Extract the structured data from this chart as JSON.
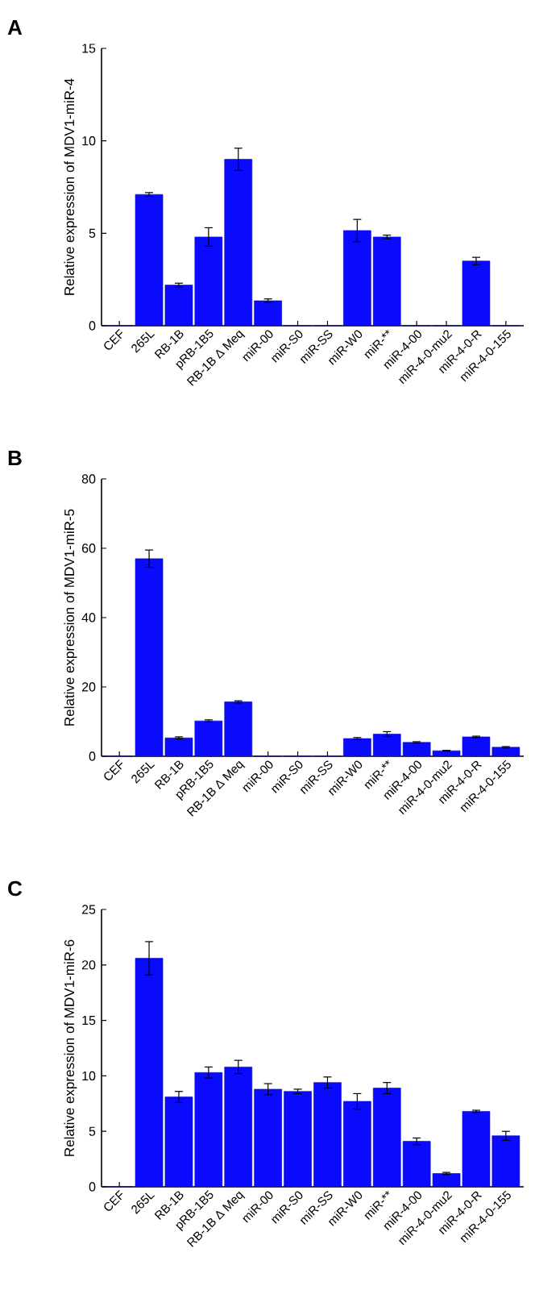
{
  "chart_data": [
    {
      "type": "bar",
      "annotations": [
        "A"
      ],
      "ylabel": "Relative expression of MDV1-miR-4",
      "categories": [
        "CEF",
        "265L",
        "RB-1B",
        "pRB-1B5",
        "RB-1B Δ Meq",
        "miR-00",
        "miR-S0",
        "miR-SS",
        "miR-W0",
        "miR-**",
        "miR-4-00",
        "miR-4-0-mu2",
        "miR-4-0-R",
        "miR-4-0-155"
      ],
      "values": [
        0,
        7.1,
        2.2,
        4.8,
        9.0,
        1.35,
        0,
        0,
        5.15,
        4.8,
        0,
        0,
        3.5,
        0
      ],
      "errors": [
        null,
        0.1,
        0.1,
        0.5,
        0.6,
        0.1,
        null,
        null,
        0.6,
        0.1,
        null,
        null,
        0.2,
        null
      ],
      "color": "#0a0aff",
      "ylim": [
        0,
        15
      ],
      "yticks": [
        0,
        5,
        10,
        15
      ]
    },
    {
      "type": "bar",
      "annotations": [
        "B"
      ],
      "ylabel": "Relative expression of MDV1-miR-5",
      "categories": [
        "CEF",
        "265L",
        "RB-1B",
        "pRB-1B5",
        "RB-1B Δ Meq",
        "miR-00",
        "miR-S0",
        "miR-SS",
        "miR-W0",
        "miR-**",
        "miR-4-00",
        "miR-4-0-mu2",
        "miR-4-0-R",
        "miR-4-0-155"
      ],
      "values": [
        0,
        57,
        5.3,
        10.2,
        15.7,
        0,
        0,
        0,
        5.1,
        6.4,
        4.0,
        1.6,
        5.6,
        2.6
      ],
      "errors": [
        null,
        2.5,
        0.3,
        0.3,
        0.3,
        null,
        null,
        null,
        0.3,
        0.7,
        0.2,
        0.1,
        0.2,
        0.2
      ],
      "color": "#0a0aff",
      "ylim": [
        0,
        80
      ],
      "yticks": [
        0,
        20,
        40,
        60,
        80
      ]
    },
    {
      "type": "bar",
      "annotations": [
        "C"
      ],
      "ylabel": "Relative expression of MDV1-miR-6",
      "categories": [
        "CEF",
        "265L",
        "RB-1B",
        "pRB-1B5",
        "RB-1B Δ Meq",
        "miR-00",
        "miR-S0",
        "miR-SS",
        "miR-W0",
        "miR-**",
        "miR-4-00",
        "miR-4-0-mu2",
        "miR-4-0-R",
        "miR-4-0-155"
      ],
      "values": [
        0,
        20.6,
        8.1,
        10.3,
        10.8,
        8.8,
        8.6,
        9.4,
        7.7,
        8.9,
        4.1,
        1.2,
        6.8,
        4.6
      ],
      "errors": [
        null,
        1.5,
        0.5,
        0.5,
        0.6,
        0.5,
        0.2,
        0.5,
        0.7,
        0.5,
        0.3,
        0.1,
        0.1,
        0.4
      ],
      "color": "#0a0aff",
      "ylim": [
        0,
        25
      ],
      "yticks": [
        0,
        5,
        10,
        15,
        20,
        25
      ]
    }
  ]
}
